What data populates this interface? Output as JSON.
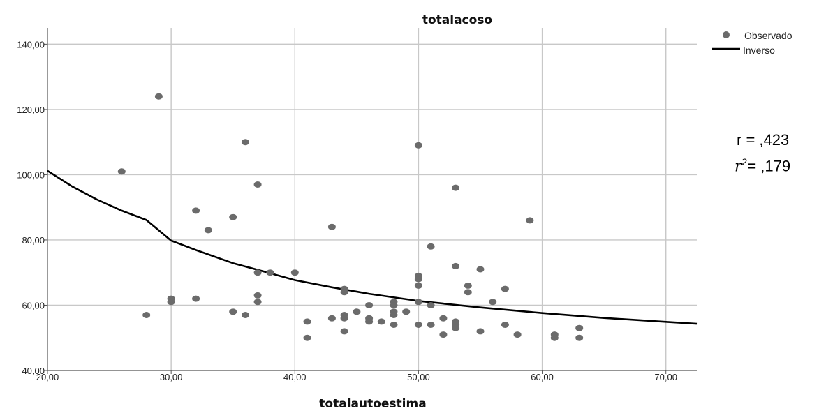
{
  "chart_data": {
    "type": "scatter",
    "title": "totalacoso",
    "xlabel": "totalautoestima",
    "ylabel": "",
    "xlim": [
      20,
      72.5
    ],
    "ylim": [
      40,
      145
    ],
    "x_ticks": [
      20,
      30,
      40,
      50,
      60,
      70
    ],
    "y_ticks": [
      40,
      60,
      80,
      100,
      120,
      140
    ],
    "x_tick_labels": [
      "20,00",
      "30,00",
      "40,00",
      "50,00",
      "60,00",
      "70,00"
    ],
    "y_tick_labels": [
      "40,00",
      "60,00",
      "80,00",
      "100,00",
      "120,00",
      "140,00"
    ],
    "grid": true,
    "legend_position": "top-right",
    "series": [
      {
        "name": "Observado",
        "kind": "points",
        "color": "#6b6b6b",
        "points": [
          [
            26,
            101
          ],
          [
            28,
            57
          ],
          [
            29,
            124
          ],
          [
            30,
            62
          ],
          [
            30,
            61
          ],
          [
            32,
            89
          ],
          [
            32,
            62
          ],
          [
            33,
            83
          ],
          [
            35,
            87
          ],
          [
            35,
            58
          ],
          [
            36,
            110
          ],
          [
            36,
            57
          ],
          [
            37,
            97
          ],
          [
            37,
            70
          ],
          [
            37,
            63
          ],
          [
            37,
            61
          ],
          [
            38,
            70
          ],
          [
            40,
            70
          ],
          [
            41,
            55
          ],
          [
            41,
            50
          ],
          [
            43,
            84
          ],
          [
            43,
            56
          ],
          [
            44,
            65
          ],
          [
            44,
            64
          ],
          [
            44,
            57
          ],
          [
            44,
            56
          ],
          [
            44,
            52
          ],
          [
            45,
            58
          ],
          [
            46,
            60
          ],
          [
            46,
            56
          ],
          [
            46,
            55
          ],
          [
            47,
            55
          ],
          [
            48,
            61
          ],
          [
            48,
            60
          ],
          [
            48,
            58
          ],
          [
            48,
            57
          ],
          [
            48,
            54
          ],
          [
            49,
            58
          ],
          [
            50,
            109
          ],
          [
            50,
            69
          ],
          [
            50,
            68
          ],
          [
            50,
            66
          ],
          [
            50,
            61
          ],
          [
            50,
            54
          ],
          [
            51,
            78
          ],
          [
            51,
            60
          ],
          [
            51,
            54
          ],
          [
            52,
            56
          ],
          [
            52,
            51
          ],
          [
            53,
            96
          ],
          [
            53,
            72
          ],
          [
            53,
            55
          ],
          [
            53,
            54
          ],
          [
            53,
            53
          ],
          [
            54,
            66
          ],
          [
            54,
            64
          ],
          [
            55,
            71
          ],
          [
            55,
            52
          ],
          [
            56,
            61
          ],
          [
            57,
            65
          ],
          [
            57,
            54
          ],
          [
            58,
            51
          ],
          [
            59,
            86
          ],
          [
            61,
            51
          ],
          [
            61,
            50
          ],
          [
            63,
            53
          ],
          [
            63,
            50
          ]
        ]
      },
      {
        "name": "Inverso",
        "kind": "line",
        "color": "#000000",
        "x": [
          20,
          22,
          24,
          26,
          28,
          30,
          32,
          35,
          38,
          40,
          43,
          46,
          50,
          55,
          60,
          65,
          70,
          72.5
        ],
        "y": [
          101.2,
          96.4,
          92.4,
          89.0,
          86.1,
          79.8,
          76.9,
          72.9,
          69.8,
          67.7,
          65.5,
          63.5,
          61.3,
          59.3,
          57.6,
          56.1,
          54.9,
          54.3
        ]
      }
    ],
    "annotations": {
      "r_text": "r = ,423",
      "r2_symbol": "r",
      "r2_value": "= ,179"
    }
  }
}
